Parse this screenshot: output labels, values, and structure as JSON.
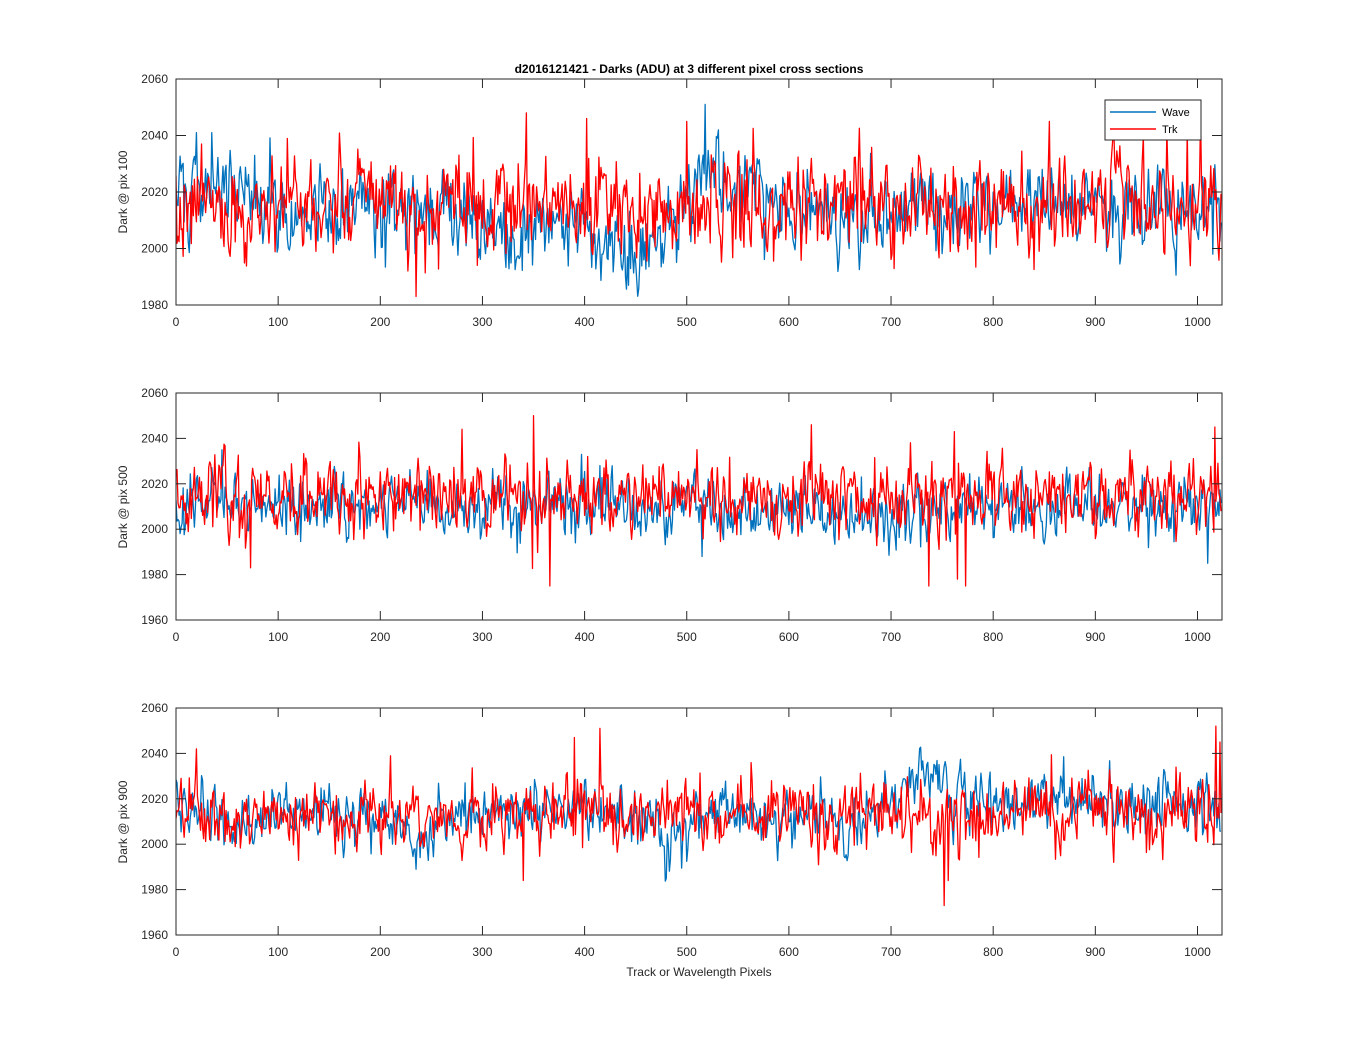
{
  "figure": {
    "title": "d2016121421 - Darks (ADU) at 3 different pixel cross sections",
    "xlabel": "Track or Wavelength Pixels"
  },
  "colors": {
    "wave": "#0072BD",
    "trk": "#FF0000",
    "axis": "#262626",
    "background": "#FFFFFF"
  },
  "chart_data": [
    {
      "type": "line",
      "title": "d2016121421 - Darks (ADU) at 3 different pixel cross sections",
      "xlabel": "",
      "ylabel": "Dark @ pix 100",
      "xlim": [
        0,
        1024
      ],
      "ylim": [
        1980,
        2060
      ],
      "xticks": [
        0,
        100,
        200,
        300,
        400,
        500,
        600,
        700,
        800,
        900,
        1000
      ],
      "yticks": [
        1980,
        2000,
        2020,
        2040,
        2060
      ],
      "grid": false,
      "legend": {
        "location": "top-right",
        "entries": [
          "Wave",
          "Trk"
        ]
      },
      "series": [
        {
          "name": "Wave",
          "color": "#0072BD",
          "seed": 101,
          "points": 1024,
          "base": 2014,
          "noise_sd": 7,
          "profile": [
            [
              0,
              2020
            ],
            [
              40,
              2022
            ],
            [
              120,
              2014
            ],
            [
              300,
              2013
            ],
            [
              330,
              2004
            ],
            [
              380,
              2010
            ],
            [
              420,
              2006
            ],
            [
              445,
              1996
            ],
            [
              470,
              2008
            ],
            [
              500,
              2016
            ],
            [
              515,
              2034
            ],
            [
              540,
              2024
            ],
            [
              600,
              2013
            ],
            [
              700,
              2013
            ],
            [
              800,
              2017
            ],
            [
              1024,
              2014
            ]
          ],
          "spikes": [
            [
              20,
              2041
            ],
            [
              35,
              2041
            ],
            [
              443,
              1987
            ],
            [
              518,
              2051
            ],
            [
              531,
              2042
            ]
          ]
        },
        {
          "name": "Trk",
          "color": "#FF0000",
          "seed": 202,
          "points": 1024,
          "base": 2016,
          "noise_sd": 8,
          "profile": [
            [
              0,
              2010
            ],
            [
              20,
              2015
            ],
            [
              1024,
              2016
            ]
          ],
          "spikes": [
            [
              235,
              1983
            ],
            [
              343,
              2048
            ],
            [
              402,
              2046
            ],
            [
              500,
              2045
            ],
            [
              855,
              2045
            ],
            [
              990,
              2042
            ],
            [
              1003,
              2048
            ]
          ]
        }
      ]
    },
    {
      "type": "line",
      "title": "",
      "xlabel": "",
      "ylabel": "Dark @ pix 500",
      "xlim": [
        0,
        1024
      ],
      "ylim": [
        1960,
        2060
      ],
      "xticks": [
        0,
        100,
        200,
        300,
        400,
        500,
        600,
        700,
        800,
        900,
        1000
      ],
      "yticks": [
        1960,
        1980,
        2000,
        2020,
        2040,
        2060
      ],
      "grid": false,
      "series": [
        {
          "name": "Wave",
          "color": "#0072BD",
          "seed": 303,
          "points": 1024,
          "base": 2012,
          "noise_sd": 6,
          "profile": [
            [
              0,
              2012
            ],
            [
              500,
              2010
            ],
            [
              720,
              2004
            ],
            [
              740,
              2008
            ],
            [
              1024,
              2012
            ]
          ],
          "spikes": [
            [
              45,
              2035
            ],
            [
              515,
              1988
            ],
            [
              1010,
              1985
            ]
          ]
        },
        {
          "name": "Trk",
          "color": "#FF0000",
          "seed": 404,
          "points": 1024,
          "base": 2014,
          "noise_sd": 8,
          "profile": [
            [
              0,
              2014
            ],
            [
              1024,
              2015
            ]
          ],
          "spikes": [
            [
              73,
              1983
            ],
            [
              280,
              2044
            ],
            [
              350,
              2050
            ],
            [
              366,
              1975
            ],
            [
              622,
              2046
            ],
            [
              737,
              1975
            ],
            [
              762,
              2043
            ],
            [
              765,
              1978
            ],
            [
              773,
              1975
            ],
            [
              1017,
              2045
            ]
          ]
        }
      ]
    },
    {
      "type": "line",
      "title": "",
      "xlabel": "Track or Wavelength Pixels",
      "ylabel": "Dark @ pix 900",
      "xlim": [
        0,
        1024
      ],
      "ylim": [
        1960,
        2060
      ],
      "xticks": [
        0,
        100,
        200,
        300,
        400,
        500,
        600,
        700,
        800,
        900,
        1000
      ],
      "yticks": [
        1960,
        1980,
        2000,
        2020,
        2040,
        2060
      ],
      "grid": false,
      "series": [
        {
          "name": "Wave",
          "color": "#0072BD",
          "seed": 505,
          "points": 1024,
          "base": 2014,
          "noise_sd": 6,
          "profile": [
            [
              0,
              2018
            ],
            [
              30,
              2015
            ],
            [
              60,
              2004
            ],
            [
              80,
              2010
            ],
            [
              120,
              2015
            ],
            [
              220,
              2010
            ],
            [
              235,
              1998
            ],
            [
              260,
              2012
            ],
            [
              400,
              2016
            ],
            [
              460,
              2010
            ],
            [
              480,
              2004
            ],
            [
              520,
              2014
            ],
            [
              640,
              2010
            ],
            [
              660,
              2002
            ],
            [
              680,
              2012
            ],
            [
              720,
              2028
            ],
            [
              745,
              2034
            ],
            [
              760,
              2020
            ],
            [
              1024,
              2016
            ]
          ],
          "spikes": [
            [
              235,
              1989
            ],
            [
              480,
              1985
            ],
            [
              655,
              1994
            ]
          ]
        },
        {
          "name": "Trk",
          "color": "#FF0000",
          "seed": 606,
          "points": 1024,
          "base": 2014,
          "noise_sd": 7,
          "profile": [
            [
              0,
              2012
            ],
            [
              1024,
              2015
            ]
          ],
          "spikes": [
            [
              20,
              2042
            ],
            [
              340,
              1984
            ],
            [
              390,
              2047
            ],
            [
              415,
              2051
            ],
            [
              752,
              1973
            ],
            [
              756,
              1984
            ],
            [
              1018,
              2052
            ],
            [
              1022,
              2045
            ]
          ]
        }
      ]
    }
  ]
}
